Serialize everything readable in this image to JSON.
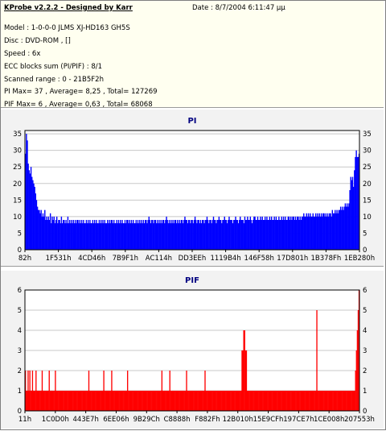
{
  "header": {
    "title": "KProbe v2.2.2 - Designed by Karr",
    "date": "Date : 8/7/2004 6:11:47 μμ",
    "lines": [
      "Model : 1-0-0-0 JLMS    XJ-HD163        GH5S",
      "Disc : DVD-ROM ,  []",
      "Speed : 6x",
      "ECC blocks sum (PI/PIF) : 8/1",
      "Scanned range : 0 - 21B5F2h",
      "PI Max= 37 , Average= 8,25 , Total= 127269",
      "PIF Max= 6 , Average= 0,63 , Total= 68068"
    ]
  },
  "colors": {
    "pi_bars": "#0000ff",
    "pif_bars": "#ff0000",
    "plot_background": "#ffffff",
    "grid": "#c8c8c8",
    "header_background": "#fffff0",
    "panel_background": "#f2f2f2",
    "title_color": "#000080"
  },
  "chart_data": [
    {
      "type": "bar",
      "title": "PI",
      "xlabel": "",
      "ylabel": "",
      "ylim": [
        0,
        36
      ],
      "yticks": [
        0,
        5,
        10,
        15,
        20,
        25,
        30,
        35
      ],
      "xticklabels": [
        "82h",
        "1F531h",
        "4CD46h",
        "7B9F1h",
        "AC114h",
        "DD3EEh",
        "1119B4h",
        "146F58h",
        "17D801h",
        "1B378Fh",
        "1EB280h"
      ],
      "grid": true,
      "series": [
        {
          "values": [
            29,
            35,
            33,
            26,
            24,
            23,
            25,
            22,
            21,
            20,
            19,
            17,
            15,
            13,
            12,
            12,
            11,
            12,
            10,
            11,
            10,
            12,
            9,
            10,
            9,
            10,
            9,
            11,
            8,
            10,
            9,
            10,
            8,
            9,
            10,
            8,
            9,
            9,
            8,
            10,
            8,
            9,
            9,
            8,
            9,
            8,
            10,
            8,
            9,
            8,
            9,
            8,
            9,
            8,
            9,
            8,
            9,
            9,
            8,
            9,
            8,
            9,
            8,
            9,
            8,
            8,
            9,
            8,
            9,
            8,
            9,
            8,
            8,
            9,
            8,
            9,
            8,
            9,
            8,
            8,
            9,
            8,
            9,
            8,
            9,
            8,
            9,
            8,
            8,
            9,
            8,
            9,
            8,
            9,
            9,
            8,
            9,
            8,
            8,
            9,
            8,
            9,
            8,
            9,
            8,
            9,
            8,
            8,
            9,
            8,
            9,
            9,
            8,
            9,
            8,
            9,
            8,
            9,
            8,
            8,
            9,
            8,
            9,
            8,
            9,
            8,
            9,
            8,
            9,
            8,
            9,
            9,
            8,
            9,
            10,
            9,
            8,
            9,
            9,
            8,
            9,
            9,
            8,
            9,
            8,
            9,
            8,
            9,
            8,
            9,
            9,
            8,
            9,
            10,
            9,
            8,
            9,
            8,
            9,
            8,
            9,
            8,
            9,
            9,
            8,
            9,
            8,
            9,
            8,
            9,
            9,
            8,
            9,
            10,
            9,
            9,
            8,
            9,
            9,
            8,
            9,
            9,
            8,
            9,
            10,
            9,
            8,
            9,
            9,
            8,
            9,
            8,
            9,
            9,
            8,
            9,
            9,
            10,
            9,
            8,
            9,
            9,
            8,
            9,
            10,
            9,
            9,
            8,
            9,
            9,
            10,
            9,
            9,
            8,
            9,
            9,
            10,
            9,
            9,
            8,
            9,
            10,
            9,
            9,
            9,
            8,
            9,
            9,
            10,
            9,
            9,
            8,
            9,
            10,
            9,
            9,
            9,
            8,
            10,
            9,
            9,
            10,
            9,
            9,
            10,
            9,
            8,
            9,
            10,
            10,
            9,
            9,
            10,
            9,
            9,
            10,
            9,
            10,
            9,
            9,
            10,
            9,
            10,
            9,
            9,
            10,
            9,
            10,
            9,
            9,
            10,
            9,
            10,
            9,
            9,
            10,
            9,
            9,
            10,
            9,
            10,
            9,
            10,
            9,
            9,
            10,
            10,
            9,
            10,
            9,
            10,
            10,
            9,
            10,
            9,
            10,
            10,
            9,
            10,
            9,
            10,
            10,
            11,
            10,
            10,
            11,
            10,
            11,
            10,
            11,
            10,
            10,
            11,
            10,
            10,
            11,
            10,
            11,
            10,
            11,
            10,
            11,
            10,
            11,
            11,
            10,
            11,
            10,
            11,
            10,
            11,
            11,
            10,
            12,
            11,
            11,
            12,
            11,
            12,
            11,
            12,
            12,
            13,
            12,
            13,
            12,
            13,
            14,
            13,
            14,
            13,
            14,
            18,
            22,
            21,
            22,
            19,
            24,
            28,
            30,
            28,
            28,
            29
          ],
          "max": 37,
          "average": 8.25
        }
      ]
    },
    {
      "type": "bar",
      "title": "PIF",
      "xlabel": "",
      "ylabel": "",
      "ylim": [
        0,
        6
      ],
      "yticks": [
        0,
        1,
        2,
        3,
        4,
        5,
        6
      ],
      "xticklabels": [
        "11h",
        "1C0D0h",
        "443E7h",
        "6EE06h",
        "9B29Ch",
        "C8888h",
        "F882Fh",
        "12B010h",
        "15E9CFh",
        "197CE7h",
        "1CE008h",
        "207553h"
      ],
      "grid": true,
      "series": [
        {
          "values": [
            2,
            1,
            1,
            2,
            1,
            2,
            1,
            1,
            2,
            1,
            1,
            1,
            2,
            1,
            1,
            1,
            1,
            1,
            1,
            2,
            1,
            1,
            1,
            1,
            1,
            1,
            1,
            2,
            1,
            1,
            1,
            1,
            1,
            1,
            2,
            1,
            1,
            1,
            1,
            1,
            1,
            1,
            1,
            1,
            1,
            1,
            1,
            1,
            1,
            1,
            1,
            1,
            1,
            1,
            1,
            1,
            1,
            1,
            1,
            1,
            1,
            1,
            1,
            1,
            1,
            1,
            1,
            1,
            1,
            1,
            1,
            1,
            2,
            1,
            1,
            1,
            1,
            1,
            1,
            1,
            1,
            1,
            1,
            1,
            1,
            1,
            1,
            1,
            1,
            2,
            1,
            1,
            1,
            1,
            1,
            1,
            1,
            1,
            2,
            1,
            1,
            1,
            1,
            1,
            1,
            1,
            1,
            1,
            1,
            1,
            1,
            1,
            1,
            1,
            1,
            1,
            2,
            1,
            1,
            1,
            1,
            1,
            1,
            1,
            1,
            1,
            1,
            1,
            1,
            1,
            1,
            1,
            1,
            1,
            1,
            1,
            1,
            1,
            1,
            1,
            1,
            1,
            1,
            1,
            1,
            1,
            1,
            1,
            1,
            1,
            1,
            1,
            1,
            1,
            1,
            2,
            1,
            1,
            1,
            1,
            1,
            1,
            1,
            1,
            2,
            1,
            1,
            1,
            1,
            1,
            1,
            1,
            1,
            1,
            1,
            1,
            1,
            1,
            1,
            1,
            1,
            1,
            1,
            2,
            1,
            1,
            1,
            1,
            1,
            1,
            1,
            1,
            1,
            1,
            1,
            1,
            1,
            1,
            1,
            1,
            1,
            1,
            1,
            1,
            2,
            1,
            1,
            1,
            1,
            1,
            1,
            1,
            1,
            1,
            1,
            1,
            1,
            1,
            1,
            1,
            1,
            1,
            1,
            1,
            1,
            1,
            1,
            1,
            1,
            1,
            1,
            1,
            1,
            1,
            1,
            1,
            1,
            1,
            1,
            1,
            1,
            1,
            1,
            1,
            1,
            1,
            3,
            3,
            4,
            4,
            3,
            3,
            1,
            1,
            1,
            1,
            1,
            1,
            1,
            1,
            1,
            1,
            1,
            1,
            1,
            1,
            1,
            1,
            1,
            1,
            1,
            1,
            1,
            1,
            1,
            1,
            1,
            1,
            1,
            1,
            1,
            1,
            1,
            1,
            1,
            1,
            1,
            1,
            1,
            1,
            1,
            1,
            1,
            1,
            1,
            1,
            1,
            1,
            1,
            1,
            1,
            1,
            1,
            1,
            1,
            1,
            1,
            1,
            1,
            1,
            1,
            1,
            1,
            1,
            1,
            1,
            1,
            1,
            1,
            1,
            1,
            1,
            1,
            1,
            1,
            1,
            1,
            1,
            1,
            1,
            1,
            5,
            1,
            1,
            1,
            1,
            1,
            1,
            1,
            1,
            1,
            1,
            1,
            1,
            1,
            1,
            1,
            1,
            1,
            1,
            1,
            1,
            1,
            1,
            1,
            1,
            1,
            1,
            1,
            1,
            1,
            1,
            1,
            1,
            1,
            1,
            1,
            1,
            1,
            1,
            1,
            1,
            1,
            1,
            1,
            2,
            3,
            4,
            5,
            6
          ],
          "max": 6,
          "average": 0.63
        }
      ]
    }
  ]
}
